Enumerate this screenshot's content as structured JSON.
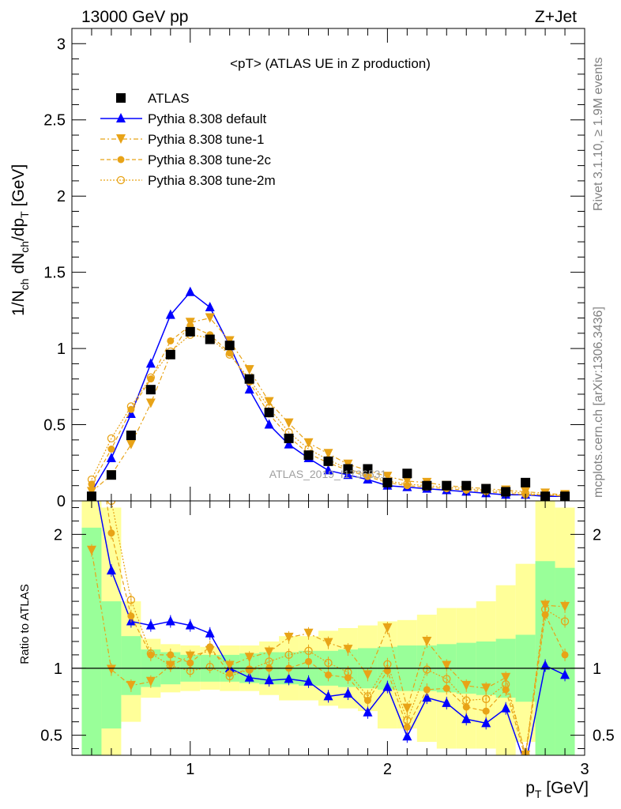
{
  "header": {
    "energy": "13000 GeV pp",
    "process": "Z+Jet"
  },
  "side_text": {
    "rivet": "Rivet 3.1.10, ≥ 1.9M events",
    "mcplots": "mcplots.cern.ch [arXiv:1306.3436]"
  },
  "watermark": "ATLAS_2019_I1736531",
  "chart_data": [
    {
      "type": "line",
      "title": "<pT> (ATLAS UE in Z production)",
      "xlabel": "p_T [GeV]",
      "ylabel": "1/N_ch dN_ch/dp_T [GeV]",
      "xlim": [
        0.4,
        3.0
      ],
      "ylim": [
        0,
        3.1
      ],
      "yticks": [
        "0",
        "0.5",
        "1",
        "1.5",
        "2",
        "2.5",
        "3"
      ],
      "legend_position": "top-left",
      "x": [
        0.5,
        0.6,
        0.7,
        0.8,
        0.9,
        1.0,
        1.1,
        1.2,
        1.3,
        1.4,
        1.5,
        1.6,
        1.7,
        1.8,
        1.9,
        2.0,
        2.1,
        2.2,
        2.3,
        2.4,
        2.5,
        2.6,
        2.7,
        2.8,
        2.9
      ],
      "series": [
        {
          "name": "ATLAS",
          "color": "#000000",
          "marker": "square",
          "values": [
            0.03,
            0.17,
            0.43,
            0.73,
            0.96,
            1.11,
            1.06,
            1.02,
            0.8,
            0.58,
            0.41,
            0.3,
            0.26,
            0.21,
            0.21,
            0.12,
            0.18,
            0.1,
            0.1,
            0.1,
            0.08,
            0.06,
            0.12,
            0.03,
            0.03
          ]
        },
        {
          "name": "Pythia 8.308 default",
          "color": "#0000ff",
          "marker": "triangle-up",
          "values": [
            0.06,
            0.28,
            0.57,
            0.9,
            1.22,
            1.37,
            1.27,
            1.02,
            0.73,
            0.5,
            0.37,
            0.28,
            0.2,
            0.17,
            0.14,
            0.1,
            0.09,
            0.08,
            0.07,
            0.06,
            0.05,
            0.04,
            0.04,
            0.03,
            0.03
          ]
        },
        {
          "name": "Pythia 8.308 tune-1",
          "color": "#e8a317",
          "marker": "triangle-down",
          "values": [
            0.06,
            0.17,
            0.37,
            0.64,
            0.96,
            1.17,
            1.2,
            1.05,
            0.86,
            0.65,
            0.51,
            0.38,
            0.31,
            0.24,
            0.2,
            0.16,
            0.13,
            0.12,
            0.1,
            0.09,
            0.08,
            0.07,
            0.06,
            0.05,
            0.04
          ]
        },
        {
          "name": "Pythia 8.308 tune-2c",
          "color": "#e8a317",
          "marker": "circle",
          "values": [
            0.11,
            0.34,
            0.6,
            0.8,
            1.05,
            1.15,
            1.09,
            0.97,
            0.78,
            0.57,
            0.42,
            0.31,
            0.25,
            0.2,
            0.16,
            0.12,
            0.1,
            0.09,
            0.08,
            0.07,
            0.06,
            0.05,
            0.04,
            0.04,
            0.03
          ]
        },
        {
          "name": "Pythia 8.308 tune-2m",
          "color": "#e8a317",
          "marker": "open-circle",
          "values": [
            0.14,
            0.41,
            0.62,
            0.81,
            0.98,
            1.09,
            1.07,
            0.96,
            0.8,
            0.61,
            0.45,
            0.34,
            0.27,
            0.21,
            0.17,
            0.13,
            0.11,
            0.1,
            0.09,
            0.08,
            0.07,
            0.06,
            0.05,
            0.04,
            0.04
          ]
        }
      ]
    },
    {
      "type": "line",
      "ylabel": "Ratio to ATLAS",
      "xlabel": "p_T [GeV]",
      "xlim": [
        0.4,
        3.0
      ],
      "ylim": [
        0.35,
        2.25
      ],
      "xticks": [
        "1",
        "2",
        "3"
      ],
      "yticks": [
        "0.5",
        "1",
        "2"
      ],
      "reference_line": 1,
      "bins": [
        0.45,
        0.55,
        0.65,
        0.75,
        0.85,
        0.95,
        1.05,
        1.15,
        1.25,
        1.35,
        1.45,
        1.55,
        1.65,
        1.75,
        1.85,
        1.95,
        2.05,
        2.15,
        2.25,
        2.35,
        2.45,
        2.55,
        2.65,
        2.75,
        2.85,
        2.95
      ],
      "uncertainty_bands": {
        "stat_color": "#99ff99",
        "total_color": "#ffff99",
        "stat": [
          [
            0.35,
            2.05
          ],
          [
            0.55,
            1.5
          ],
          [
            0.8,
            1.24
          ],
          [
            0.86,
            1.14
          ],
          [
            0.88,
            1.12
          ],
          [
            0.9,
            1.1
          ],
          [
            0.9,
            1.1
          ],
          [
            0.9,
            1.1
          ],
          [
            0.89,
            1.11
          ],
          [
            0.88,
            1.12
          ],
          [
            0.88,
            1.12
          ],
          [
            0.87,
            1.13
          ],
          [
            0.87,
            1.13
          ],
          [
            0.86,
            1.14
          ],
          [
            0.85,
            1.15
          ],
          [
            0.84,
            1.16
          ],
          [
            0.83,
            1.17
          ],
          [
            0.83,
            1.17
          ],
          [
            0.82,
            1.18
          ],
          [
            0.81,
            1.19
          ],
          [
            0.8,
            1.2
          ],
          [
            0.78,
            1.22
          ],
          [
            0.75,
            1.25
          ],
          [
            0.3,
            1.8
          ],
          [
            0.35,
            1.75
          ]
        ],
        "total": [
          [
            0.3,
            2.3
          ],
          [
            0.35,
            2.2
          ],
          [
            0.6,
            1.5
          ],
          [
            0.78,
            1.22
          ],
          [
            0.82,
            1.18
          ],
          [
            0.83,
            1.17
          ],
          [
            0.84,
            1.16
          ],
          [
            0.83,
            1.17
          ],
          [
            0.83,
            1.17
          ],
          [
            0.8,
            1.2
          ],
          [
            0.76,
            1.24
          ],
          [
            0.76,
            1.24
          ],
          [
            0.72,
            1.28
          ],
          [
            0.7,
            1.3
          ],
          [
            0.68,
            1.32
          ],
          [
            0.55,
            1.35
          ],
          [
            0.55,
            1.36
          ],
          [
            0.45,
            1.4
          ],
          [
            0.4,
            1.45
          ],
          [
            0.4,
            1.45
          ],
          [
            0.4,
            1.5
          ],
          [
            0.35,
            1.62
          ],
          [
            0.45,
            1.78
          ],
          [
            0.3,
            2.5
          ],
          [
            0.3,
            2.2
          ]
        ]
      },
      "x": [
        0.5,
        0.6,
        0.7,
        0.8,
        0.9,
        1.0,
        1.1,
        1.2,
        1.3,
        1.4,
        1.5,
        1.6,
        1.7,
        1.8,
        1.9,
        2.0,
        2.1,
        2.2,
        2.3,
        2.4,
        2.5,
        2.6,
        2.7,
        2.8,
        2.9
      ],
      "series": [
        {
          "name": "Pythia 8.308 default",
          "color": "#0000ff",
          "marker": "triangle-up",
          "values": [
            2.5,
            1.73,
            1.35,
            1.32,
            1.35,
            1.32,
            1.26,
            1.0,
            0.93,
            0.91,
            0.92,
            0.9,
            0.79,
            0.81,
            0.67,
            0.86,
            0.49,
            0.78,
            0.74,
            0.62,
            0.59,
            0.7,
            0.28,
            1.02,
            0.95
          ]
        },
        {
          "name": "Pythia 8.308 tune-1",
          "color": "#e8a317",
          "marker": "triangle-down",
          "values": [
            1.88,
            0.99,
            0.87,
            0.9,
            1.02,
            1.09,
            1.13,
            1.02,
            1.08,
            1.12,
            1.23,
            1.26,
            1.19,
            1.14,
            0.95,
            1.3,
            0.7,
            1.2,
            1.02,
            0.87,
            0.85,
            0.93,
            0.35,
            1.47,
            1.46
          ]
        },
        {
          "name": "Pythia 8.308 tune-2c",
          "color": "#e8a317",
          "marker": "circle",
          "values": [
            3.0,
            2.01,
            1.39,
            1.1,
            1.1,
            1.04,
            1.16,
            0.96,
            0.99,
            1.0,
            1.0,
            1.05,
            0.95,
            0.93,
            0.76,
            0.98,
            0.56,
            0.84,
            0.85,
            0.71,
            0.68,
            0.84,
            0.33,
            1.4,
            1.1
          ]
        },
        {
          "name": "Pythia 8.308 tune-2m",
          "color": "#e8a317",
          "marker": "open-circle",
          "values": [
            3.0,
            2.25,
            1.51,
            1.11,
            1.02,
            0.98,
            1.01,
            0.94,
            0.99,
            1.05,
            1.1,
            1.13,
            1.04,
            0.97,
            0.79,
            1.03,
            0.61,
            0.99,
            0.92,
            0.76,
            0.77,
            0.88,
            0.36,
            1.44,
            1.35
          ]
        }
      ]
    }
  ]
}
